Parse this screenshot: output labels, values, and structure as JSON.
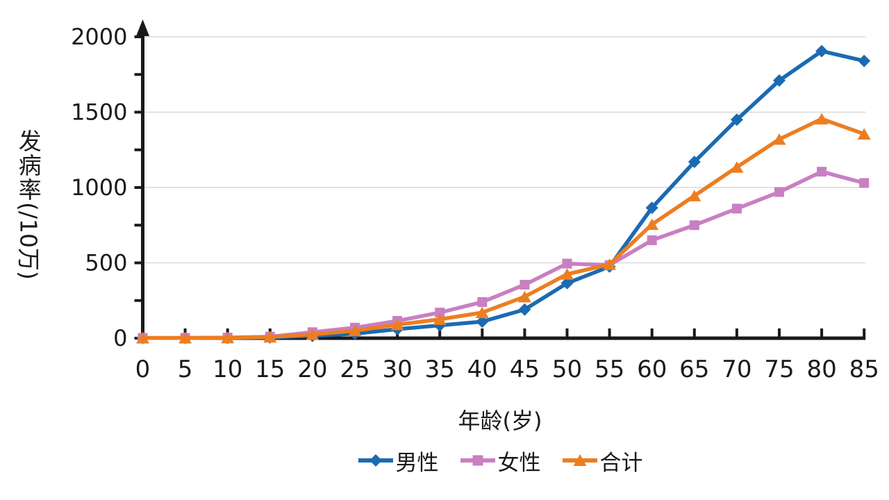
{
  "chart_data": {
    "type": "line",
    "title": "",
    "xlabel": "年龄(岁)",
    "ylabel": "发病率(/10万)",
    "ylabel_upright_part": "发病率",
    "ylabel_rotated_part": "(/10万)",
    "x": [
      0,
      5,
      10,
      15,
      20,
      25,
      30,
      35,
      40,
      45,
      50,
      55,
      60,
      65,
      70,
      75,
      80,
      85
    ],
    "x_tick_labels": [
      "0",
      "5",
      "10",
      "15",
      "20",
      "25",
      "30",
      "35",
      "40",
      "45",
      "50",
      "55",
      "60",
      "65",
      "70",
      "75",
      "80",
      "85"
    ],
    "ylim": [
      0,
      2000
    ],
    "yticks": [
      0,
      500,
      1000,
      1500,
      2000
    ],
    "ytick_labels": [
      "0",
      "500",
      "1000",
      "1500",
      "2000"
    ],
    "ytick_minor_interval": 250,
    "grid": "horizontal-major",
    "y_axis_arrow": true,
    "legend_position": "bottom-center",
    "series": [
      {
        "name": "男性",
        "marker": "diamond",
        "color": "#1b6ab3",
        "values": [
          1,
          1,
          2,
          5,
          15,
          30,
          60,
          85,
          110,
          190,
          365,
          475,
          865,
          1170,
          1450,
          1710,
          1905,
          1840
        ]
      },
      {
        "name": "女性",
        "marker": "square",
        "color": "#c97fc2",
        "values": [
          2,
          2,
          4,
          10,
          40,
          70,
          115,
          170,
          240,
          355,
          495,
          485,
          650,
          750,
          860,
          970,
          1105,
          1030
        ]
      },
      {
        "name": "合计",
        "marker": "triangle",
        "color": "#ec7e21",
        "values": [
          2,
          2,
          3,
          8,
          25,
          50,
          90,
          125,
          170,
          275,
          425,
          490,
          755,
          945,
          1135,
          1320,
          1455,
          1355
        ]
      }
    ],
    "colors": {
      "axis": "#1a1a1a",
      "grid": "#d9d9d9",
      "text": "#1a1a1a",
      "background": "#ffffff"
    }
  }
}
